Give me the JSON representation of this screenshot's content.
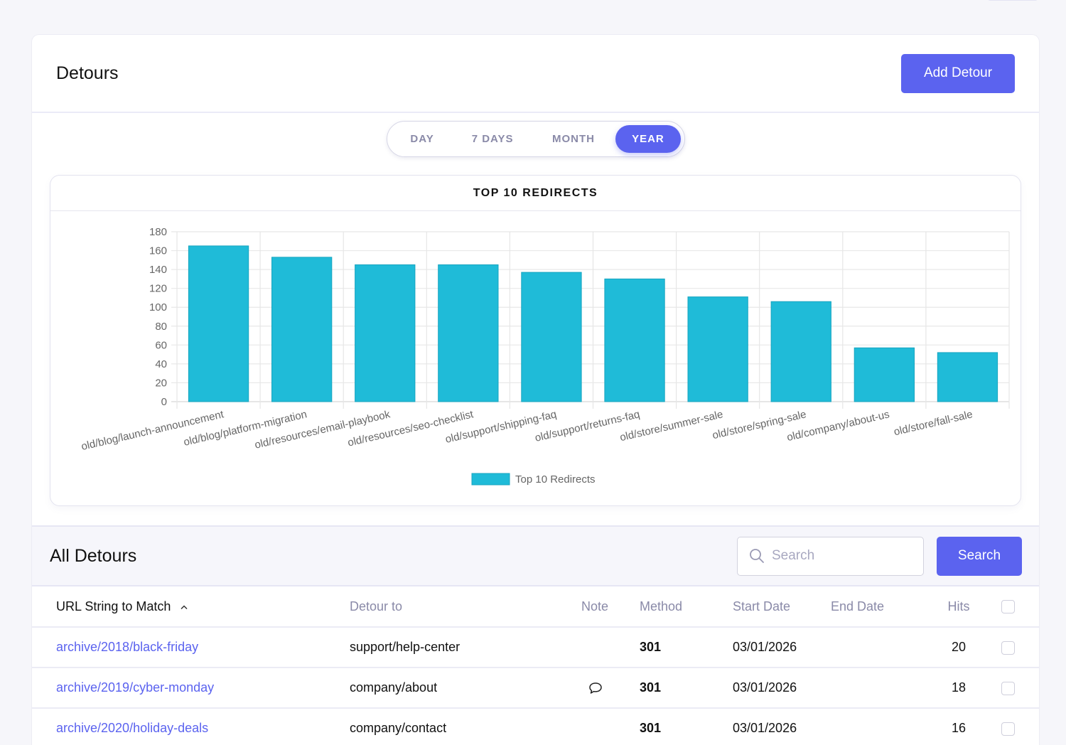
{
  "page": {
    "title": "Detours",
    "add_button": "Add Detour"
  },
  "range": {
    "options": [
      "DAY",
      "7 DAYS",
      "MONTH",
      "YEAR"
    ],
    "selected": "YEAR"
  },
  "colors": {
    "accent": "#5b63ef",
    "bar": "#1fbbd8",
    "bar_border": "#18a5c0",
    "link": "#5b63ef"
  },
  "chart_data": {
    "type": "bar",
    "title": "TOP 10 REDIRECTS",
    "categories": [
      "old/blog/launch-announcement",
      "old/blog/platform-migration",
      "old/resources/email-playbook",
      "old/resources/seo-checklist",
      "old/support/shipping-faq",
      "old/support/returns-faq",
      "old/store/summer-sale",
      "old/store/spring-sale",
      "old/company/about-us",
      "old/store/fall-sale"
    ],
    "series": [
      {
        "name": "Top 10 Redirects",
        "values": [
          165,
          153,
          145,
          145,
          137,
          130,
          111,
          106,
          57,
          52
        ]
      }
    ],
    "xlabel": "",
    "ylabel": "",
    "ylim": [
      0,
      180
    ],
    "yticks": [
      0,
      20,
      40,
      60,
      80,
      100,
      120,
      140,
      160,
      180
    ],
    "grid": true,
    "legend": "bottom-center"
  },
  "list": {
    "title": "All Detours",
    "search_placeholder": "Search",
    "search_value": "",
    "search_button": "Search",
    "columns": {
      "url": "URL String to Match",
      "detour": "Detour to",
      "note": "Note",
      "method": "Method",
      "start": "Start Date",
      "end": "End Date",
      "hits": "Hits"
    },
    "sort": {
      "column": "url",
      "direction": "ascending"
    },
    "rows": [
      {
        "url": "archive/2018/black-friday",
        "detour": "support/help-center",
        "has_note": false,
        "method": "301",
        "start": "03/01/2026",
        "end": "",
        "hits": "20",
        "checked": false
      },
      {
        "url": "archive/2019/cyber-monday",
        "detour": "company/about",
        "has_note": true,
        "method": "301",
        "start": "03/01/2026",
        "end": "",
        "hits": "18",
        "checked": false
      },
      {
        "url": "archive/2020/holiday-deals",
        "detour": "company/contact",
        "has_note": false,
        "method": "301",
        "start": "03/01/2026",
        "end": "",
        "hits": "16",
        "checked": false
      }
    ]
  }
}
